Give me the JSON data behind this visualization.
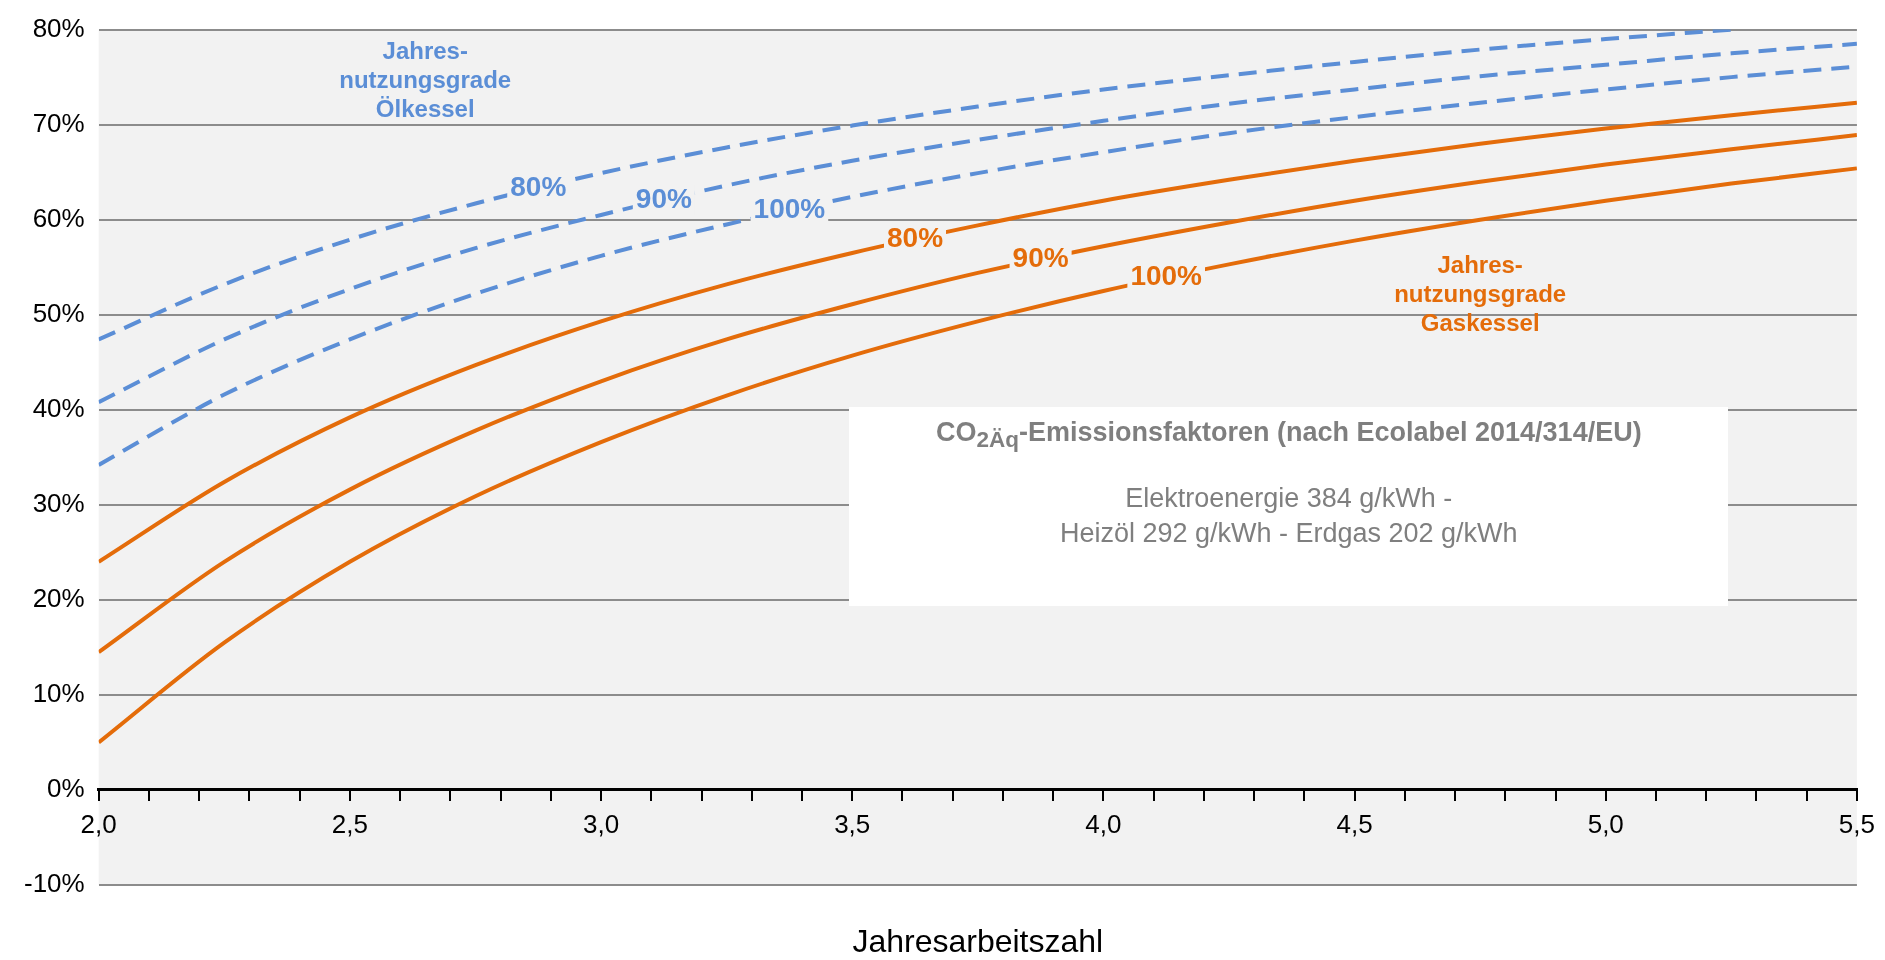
{
  "chart_data": {
    "type": "line",
    "xlabel": "Jahresarbeitszahl",
    "x": [
      2,
      2.25,
      2.5,
      2.75,
      3,
      3.25,
      3.5,
      3.75,
      4,
      4.25,
      4.5,
      4.75,
      5,
      5.25,
      5.5
    ],
    "series": [
      {
        "name": "80%",
        "color": "#5b8ed6",
        "line_style": "dashed",
        "values": [
          47.4,
          53.2,
          57.9,
          61.7,
          64.9,
          67.6,
          69.9,
          71.9,
          73.7,
          75.2,
          76.6,
          77.9,
          79.0,
          80.0,
          null
        ]
      },
      {
        "name": "90%",
        "color": "#5b8ed6",
        "line_style": "dashed",
        "values": [
          40.8,
          47.4,
          52.7,
          57.0,
          60.5,
          63.6,
          66.2,
          68.4,
          70.4,
          72.2,
          73.7,
          75.1,
          76.3,
          77.5,
          78.5
        ]
      },
      {
        "name": "100%",
        "color": "#5b8ed6",
        "line_style": "dashed",
        "values": [
          34.2,
          41.6,
          47.4,
          52.2,
          56.2,
          59.5,
          62.4,
          64.9,
          67.1,
          69.1,
          70.8,
          72.3,
          73.7,
          75.0,
          76.1
        ]
      },
      {
        "name": "80%",
        "color": "#e46c0a",
        "line_style": "solid",
        "values": [
          24.0,
          32.4,
          39.2,
          44.7,
          49.3,
          53.2,
          56.5,
          59.4,
          62.0,
          64.2,
          66.2,
          68.0,
          69.6,
          71.0,
          72.3
        ]
      },
      {
        "name": "90%",
        "color": "#e46c0a",
        "line_style": "solid",
        "values": [
          14.5,
          24.0,
          31.6,
          37.8,
          43.0,
          47.4,
          51.1,
          54.4,
          57.2,
          59.7,
          62.0,
          64.0,
          65.8,
          67.4,
          68.9
        ]
      },
      {
        "name": "100%",
        "color": "#e46c0a",
        "line_style": "solid",
        "values": [
          5.0,
          15.5,
          24.0,
          30.9,
          36.6,
          41.5,
          45.7,
          49.3,
          52.5,
          55.3,
          57.8,
          60.0,
          62.0,
          63.8,
          65.4
        ]
      }
    ],
    "xlim": [
      2,
      5.5
    ],
    "xticks": [
      {
        "value": 2.0,
        "label": "2,0"
      },
      {
        "value": 2.1,
        "label": null
      },
      {
        "value": 2.2,
        "label": null
      },
      {
        "value": 2.3,
        "label": null
      },
      {
        "value": 2.4,
        "label": null
      },
      {
        "value": 2.5,
        "label": "2,5"
      },
      {
        "value": 2.6,
        "label": null
      },
      {
        "value": 2.7,
        "label": null
      },
      {
        "value": 2.8,
        "label": null
      },
      {
        "value": 2.9,
        "label": null
      },
      {
        "value": 3.0,
        "label": "3,0"
      },
      {
        "value": 3.1,
        "label": null
      },
      {
        "value": 3.2,
        "label": null
      },
      {
        "value": 3.3,
        "label": null
      },
      {
        "value": 3.4,
        "label": null
      },
      {
        "value": 3.5,
        "label": "3,5"
      },
      {
        "value": 3.6,
        "label": null
      },
      {
        "value": 3.7,
        "label": null
      },
      {
        "value": 3.8,
        "label": null
      },
      {
        "value": 3.9,
        "label": null
      },
      {
        "value": 4.0,
        "label": "4,0"
      },
      {
        "value": 4.1,
        "label": null
      },
      {
        "value": 4.2,
        "label": null
      },
      {
        "value": 4.3,
        "label": null
      },
      {
        "value": 4.4,
        "label": null
      },
      {
        "value": 4.5,
        "label": "4,5"
      },
      {
        "value": 4.6,
        "label": null
      },
      {
        "value": 4.7,
        "label": null
      },
      {
        "value": 4.8,
        "label": null
      },
      {
        "value": 4.9,
        "label": null
      },
      {
        "value": 5.0,
        "label": "5,0"
      },
      {
        "value": 5.1,
        "label": null
      },
      {
        "value": 5.2,
        "label": null
      },
      {
        "value": 5.3,
        "label": null
      },
      {
        "value": 5.4,
        "label": null
      },
      {
        "value": 5.5,
        "label": "5,5"
      }
    ],
    "ylim": [
      -10,
      80
    ],
    "yticks": [
      {
        "value": -10,
        "label": "-10%"
      },
      {
        "value": 0,
        "label": "0%"
      },
      {
        "value": 10,
        "label": "10%"
      },
      {
        "value": 20,
        "label": "20%"
      },
      {
        "value": 30,
        "label": "30%"
      },
      {
        "value": 40,
        "label": "40%"
      },
      {
        "value": 50,
        "label": "50%"
      },
      {
        "value": 60,
        "label": "60%"
      },
      {
        "value": 70,
        "label": "70%"
      },
      {
        "value": 80,
        "label": "80%"
      }
    ],
    "grid": "y",
    "legend": false,
    "marker": "none",
    "annotations": [
      "Jahres-\nnutzungsgrade\nÖlkessel",
      "Jahres-\nnutzungsgrade\nGaskessel",
      "CO$_{2Äq}$-Emissionsfaktoren (nach Ecolabel 2014/314/EU)",
      "Elektroenergie 384 g/kWh -\nHeizöl 292 g/kWh - Erdgas 202 g/kWh"
    ]
  }
}
